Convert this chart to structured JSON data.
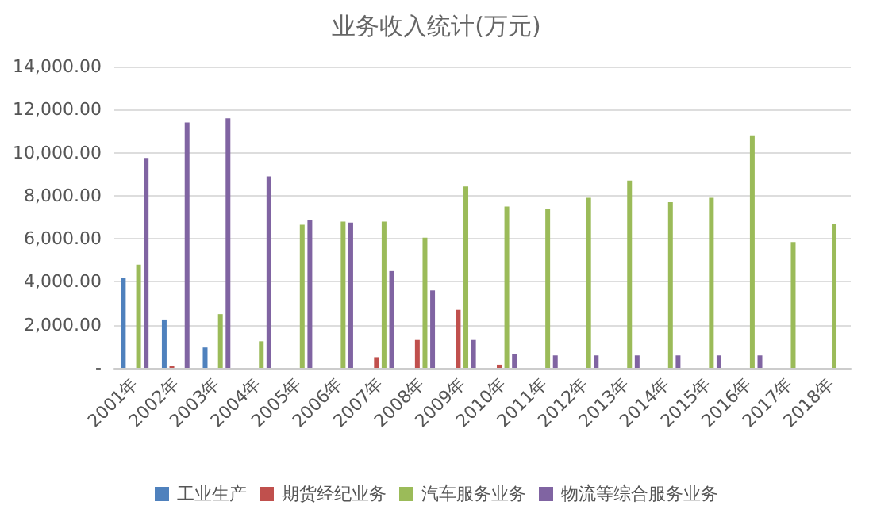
{
  "chart_data": {
    "type": "bar",
    "title": "业务收入统计(万元)",
    "categories": [
      "2001年",
      "2002年",
      "2003年",
      "2004年",
      "2005年",
      "2006年",
      "2007年",
      "2008年",
      "2009年",
      "2010年",
      "2011年",
      "2012年",
      "2013年",
      "2014年",
      "2015年",
      "2016年",
      "2017年",
      "2018年"
    ],
    "series": [
      {
        "name": "工业生产",
        "color": "#4f81bd",
        "values": [
          4200,
          2250,
          950,
          null,
          null,
          null,
          null,
          null,
          null,
          null,
          null,
          null,
          null,
          null,
          null,
          null,
          null,
          null
        ]
      },
      {
        "name": "期货经纪业务",
        "color": "#c0504d",
        "values": [
          null,
          100,
          null,
          null,
          null,
          null,
          500,
          1300,
          2700,
          150,
          null,
          null,
          null,
          null,
          null,
          null,
          null,
          null
        ]
      },
      {
        "name": "汽车服务业务",
        "color": "#9bbb59",
        "values": [
          4800,
          null,
          2500,
          1240,
          6650,
          6800,
          6800,
          6050,
          8430,
          7500,
          7400,
          7900,
          8700,
          7700,
          7900,
          10800,
          5850,
          6700
        ]
      },
      {
        "name": "物流等综合服务业务",
        "color": "#8064a2",
        "values": [
          9750,
          11400,
          11600,
          8900,
          6850,
          6750,
          4500,
          3600,
          1300,
          650,
          580,
          580,
          580,
          580,
          580,
          580,
          null,
          null
        ]
      }
    ],
    "ylim": [
      0,
      14000
    ],
    "yticks": [
      {
        "value": 0,
        "label": "-"
      },
      {
        "value": 2000,
        "label": "2,000.00"
      },
      {
        "value": 4000,
        "label": "4,000.00"
      },
      {
        "value": 6000,
        "label": "6,000.00"
      },
      {
        "value": 8000,
        "label": "8,000.00"
      },
      {
        "value": 10000,
        "label": "10,000.00"
      },
      {
        "value": 12000,
        "label": "12,000.00"
      },
      {
        "value": 14000,
        "label": "14,000.00"
      }
    ],
    "grid": "y",
    "legend": "bottom"
  }
}
